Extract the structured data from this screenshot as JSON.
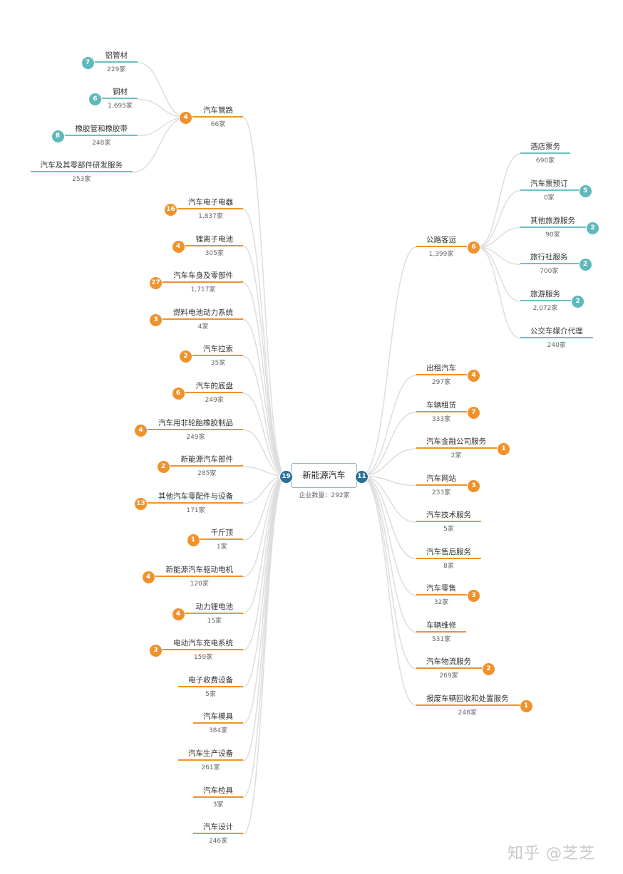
{
  "colors": {
    "orange": "#f0922b",
    "teal": "#6cc0c2",
    "root_badge": "#2b6f96",
    "connector": "#dddddd"
  },
  "root": {
    "label": "新能源汽车",
    "sub": "企业数量：292家",
    "left_count": "19",
    "right_count": "11"
  },
  "left": [
    {
      "label": "汽车管路",
      "count": "66家",
      "badge": "4",
      "children": [
        {
          "label": "铝管材",
          "count": "229家",
          "badge": "7"
        },
        {
          "label": "钢材",
          "count": "1,695家",
          "badge": "6"
        },
        {
          "label": "橡胶管和橡胶带",
          "count": "248家",
          "badge": "8"
        },
        {
          "label": "汽车及其零部件研发服务",
          "count": "253家",
          "badge": ""
        }
      ]
    },
    {
      "label": "汽车电子电器",
      "count": "1,837家",
      "badge": "16"
    },
    {
      "label": "锂离子电池",
      "count": "305家",
      "badge": "4"
    },
    {
      "label": "汽车车身及零部件",
      "count": "1,717家",
      "badge": "27"
    },
    {
      "label": "燃料电池动力系统",
      "count": "4家",
      "badge": "3"
    },
    {
      "label": "汽车拉索",
      "count": "35家",
      "badge": "2"
    },
    {
      "label": "汽车的底盘",
      "count": "249家",
      "badge": "6"
    },
    {
      "label": "汽车用非轮胎橡胶制品",
      "count": "249家",
      "badge": "4"
    },
    {
      "label": "新能源汽车部件",
      "count": "285家",
      "badge": "2"
    },
    {
      "label": "其他汽车零配件与设备",
      "count": "171家",
      "badge": "13"
    },
    {
      "label": "千斤顶",
      "count": "1家",
      "badge": "1"
    },
    {
      "label": "新能源汽车驱动电机",
      "count": "120家",
      "badge": "4"
    },
    {
      "label": "动力锂电池",
      "count": "15家",
      "badge": "4"
    },
    {
      "label": "电动汽车充电系统",
      "count": "159家",
      "badge": "3"
    },
    {
      "label": "电子收费设备",
      "count": "5家",
      "badge": ""
    },
    {
      "label": "汽车模具",
      "count": "384家",
      "badge": ""
    },
    {
      "label": "汽车生产设备",
      "count": "261家",
      "badge": ""
    },
    {
      "label": "汽车检具",
      "count": "3家",
      "badge": ""
    },
    {
      "label": "汽车设计",
      "count": "246家",
      "badge": ""
    }
  ],
  "right": [
    {
      "label": "公路客运",
      "count": "1,399家",
      "badge": "6",
      "children": [
        {
          "label": "酒店票务",
          "count": "690家",
          "badge": ""
        },
        {
          "label": "汽车票预订",
          "count": "0家",
          "badge": "5"
        },
        {
          "label": "其他旅游服务",
          "count": "90家",
          "badge": "2"
        },
        {
          "label": "旅行社服务",
          "count": "700家",
          "badge": "2"
        },
        {
          "label": "旅游服务",
          "count": "2,072家",
          "badge": "2"
        },
        {
          "label": "公交车媒介代理",
          "count": "240家",
          "badge": ""
        }
      ]
    },
    {
      "label": "出租汽车",
      "count": "297家",
      "badge": "4"
    },
    {
      "label": "车辆租赁",
      "count": "333家",
      "badge": "7"
    },
    {
      "label": "汽车金融公司服务",
      "count": "2家",
      "badge": "1"
    },
    {
      "label": "汽车网站",
      "count": "233家",
      "badge": "3"
    },
    {
      "label": "汽车技术服务",
      "count": "5家",
      "badge": ""
    },
    {
      "label": "汽车售后服务",
      "count": "8家",
      "badge": ""
    },
    {
      "label": "汽车零售",
      "count": "32家",
      "badge": "3"
    },
    {
      "label": "车辆维修",
      "count": "531家",
      "badge": ""
    },
    {
      "label": "汽车物流服务",
      "count": "269家",
      "badge": "2"
    },
    {
      "label": "报废车辆回收和处置服务",
      "count": "248家",
      "badge": "1"
    }
  ],
  "watermark": "知乎 @芝芝"
}
